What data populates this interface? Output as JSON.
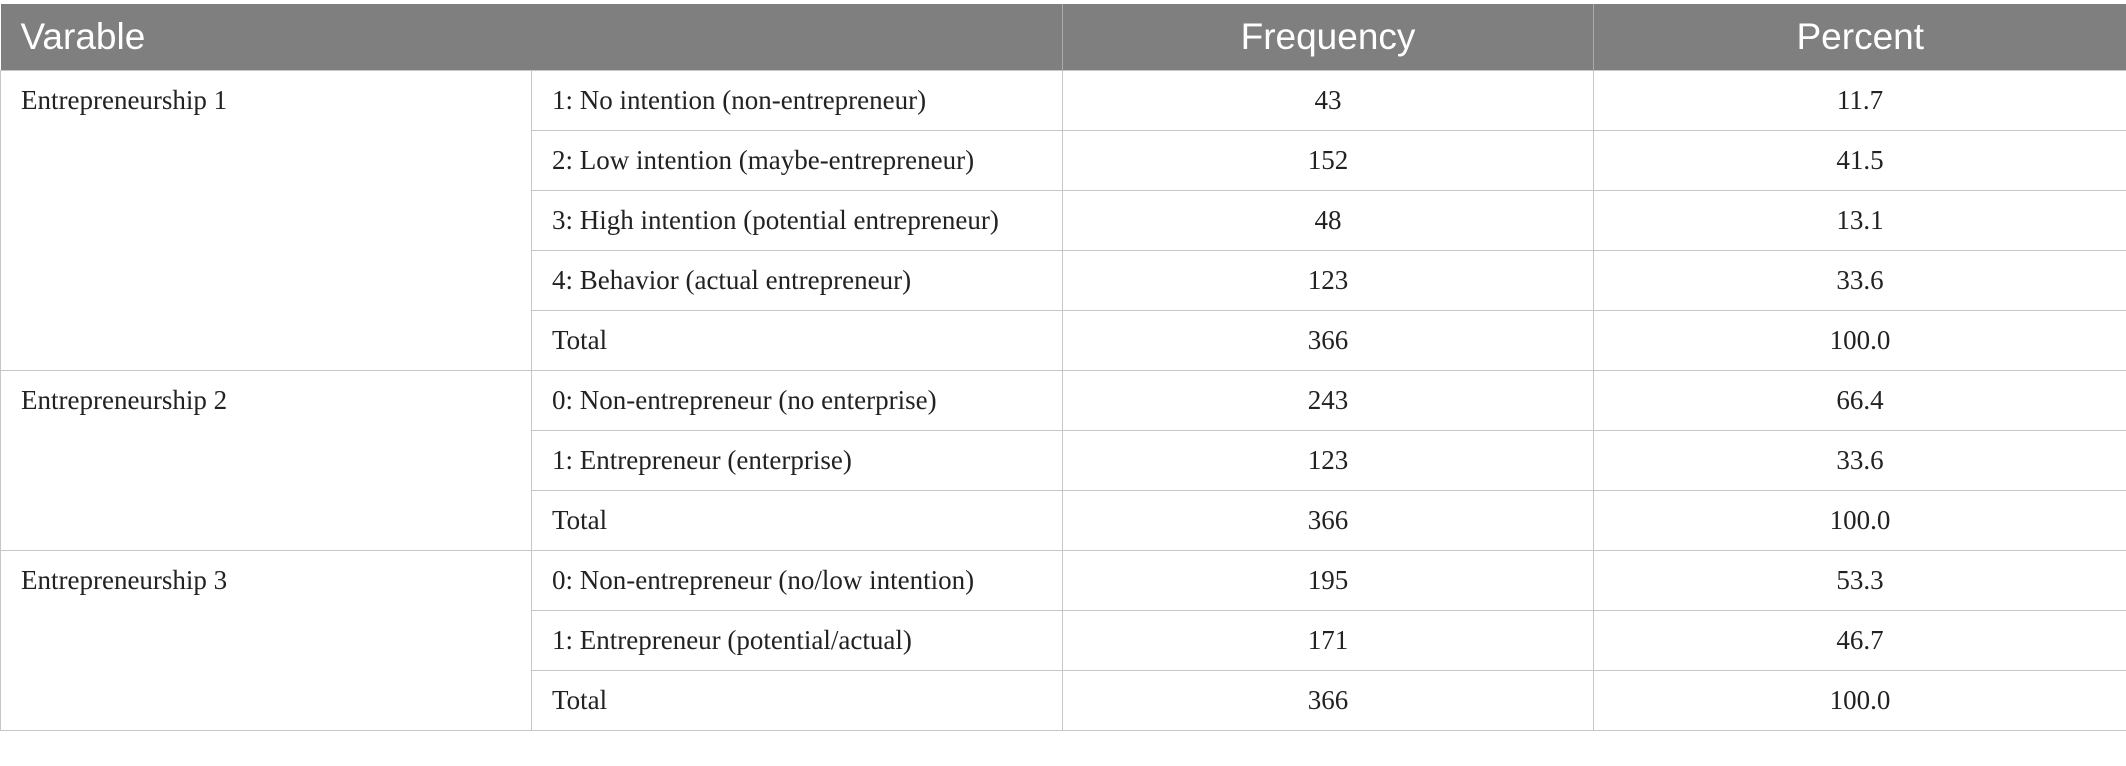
{
  "header": {
    "variable": "Varable",
    "frequency": "Frequency",
    "percent": "Percent"
  },
  "groups": [
    {
      "variable": "Entrepreneurship 1",
      "rows": [
        {
          "category": "1: No intention (non-entrepreneur)",
          "frequency": "43",
          "percent": "11.7"
        },
        {
          "category": "2: Low intention (maybe-entrepreneur)",
          "frequency": "152",
          "percent": "41.5"
        },
        {
          "category": "3: High intention (potential entrepreneur)",
          "frequency": "48",
          "percent": "13.1"
        },
        {
          "category": "4: Behavior (actual entrepreneur)",
          "frequency": "123",
          "percent": "33.6"
        },
        {
          "category": "Total",
          "frequency": "366",
          "percent": "100.0"
        }
      ]
    },
    {
      "variable": "Entrepreneurship 2",
      "rows": [
        {
          "category": "0: Non-entrepreneur (no enterprise)",
          "frequency": "243",
          "percent": "66.4"
        },
        {
          "category": "1: Entrepreneur (enterprise)",
          "frequency": "123",
          "percent": "33.6"
        },
        {
          "category": "Total",
          "frequency": "366",
          "percent": "100.0"
        }
      ]
    },
    {
      "variable": "Entrepreneurship 3",
      "rows": [
        {
          "category": "0: Non-entrepreneur (no/low intention)",
          "frequency": "195",
          "percent": "53.3"
        },
        {
          "category": "1: Entrepreneur (potential/actual)",
          "frequency": "171",
          "percent": "46.7"
        },
        {
          "category": "Total",
          "frequency": "366",
          "percent": "100.0"
        }
      ]
    }
  ]
}
